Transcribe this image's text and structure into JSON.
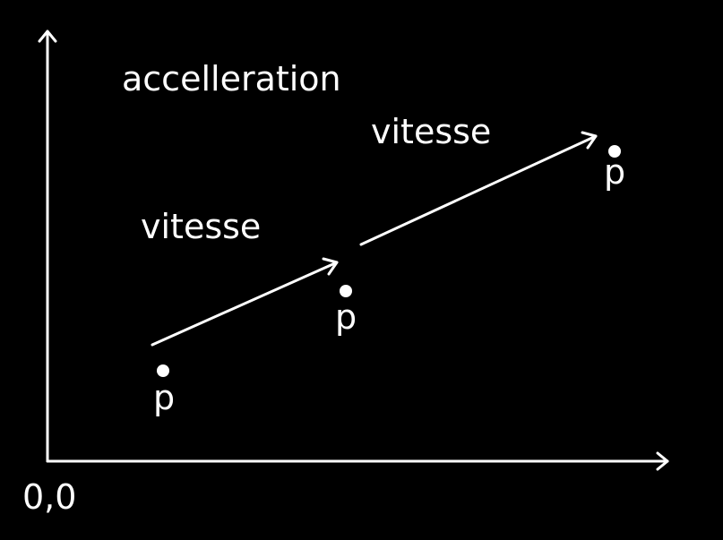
{
  "labels": {
    "acceleration": "accelleration",
    "velocity_1": "vitesse",
    "velocity_2": "vitesse",
    "position_1": "p",
    "position_2": "p",
    "position_3": "p",
    "origin": "0,0"
  },
  "colors": {
    "background": "#000000",
    "foreground": "#ffffff"
  }
}
